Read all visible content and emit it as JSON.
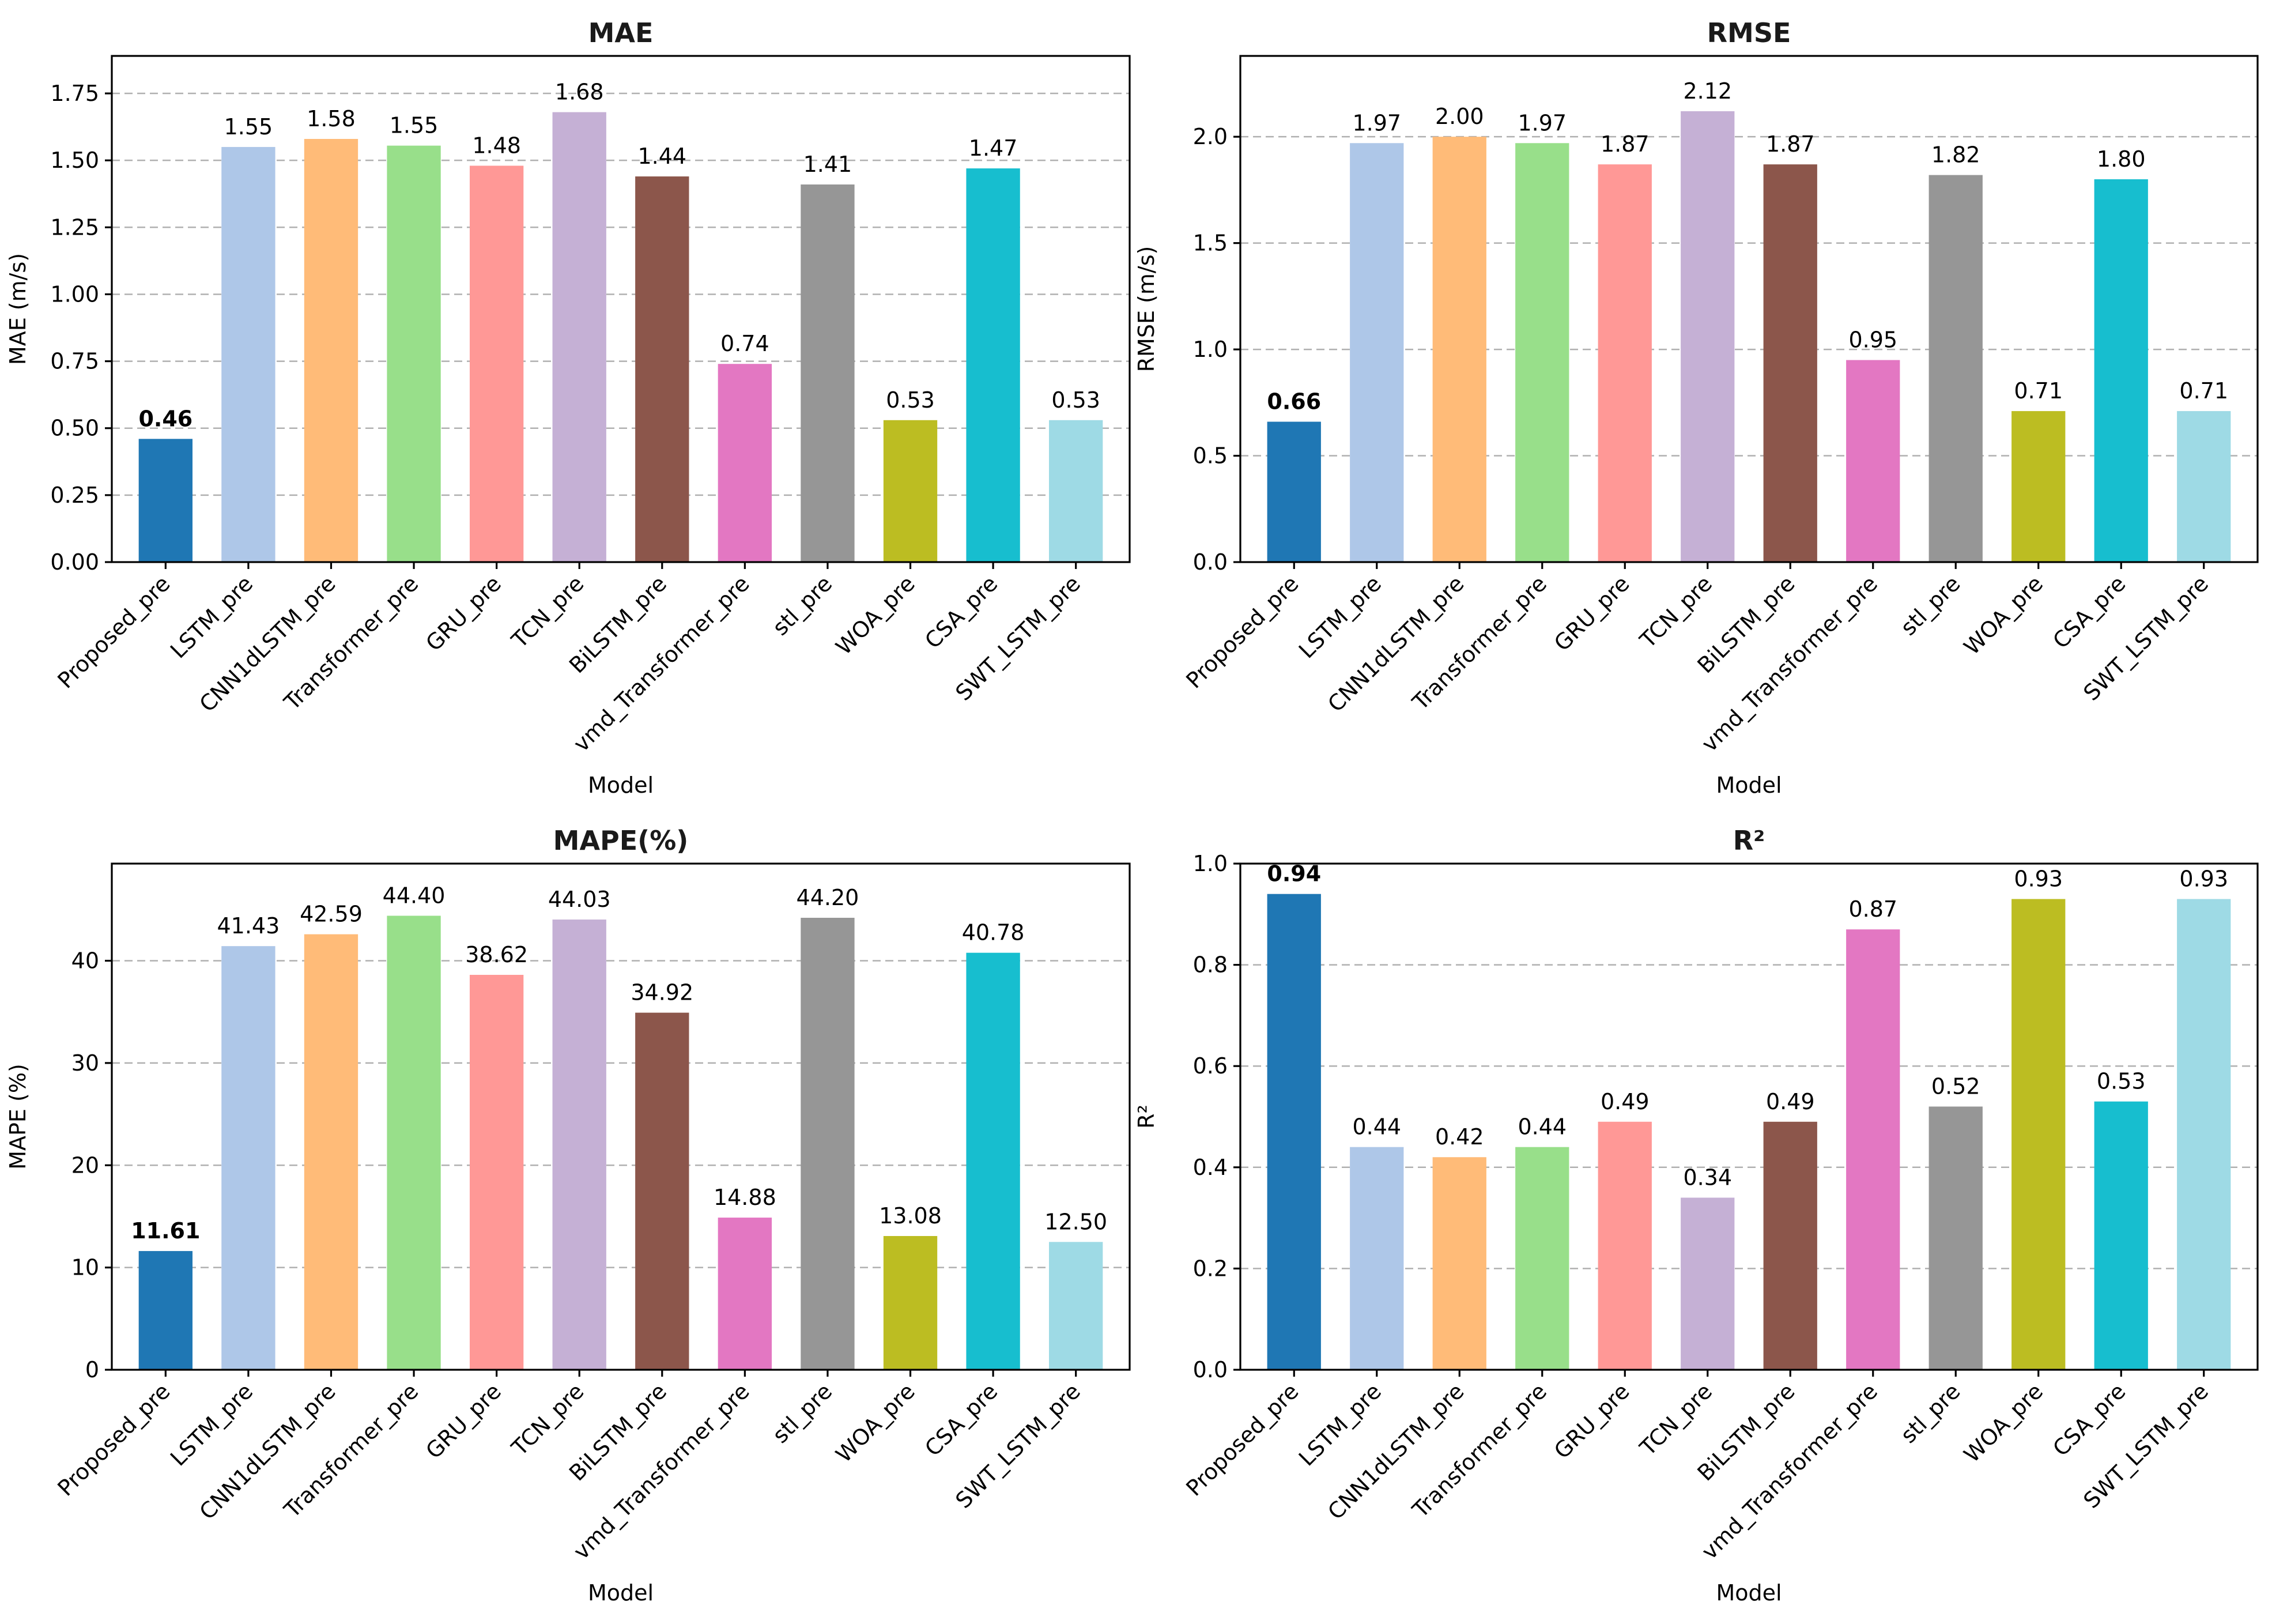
{
  "chart_data": [
    {
      "type": "bar",
      "title": "MAE",
      "xlabel": "Model",
      "ylabel": "MAE (m/s)",
      "ylim": [
        0,
        1.89
      ],
      "yticks": [
        0.0,
        0.25,
        0.5,
        0.75,
        1.0,
        1.25,
        1.5,
        1.75
      ],
      "ytick_labels": [
        "0.00",
        "0.25",
        "0.50",
        "0.75",
        "1.00",
        "1.25",
        "1.50",
        "1.75"
      ],
      "categories": [
        "Proposed_pre",
        "LSTM_pre",
        "CNN1dLSTM_pre",
        "Transformer_pre",
        "GRU_pre",
        "TCN_pre",
        "BiLSTM_pre",
        "vmd_Transformer_pre",
        "stl_pre",
        "WOA_pre",
        "CSA_pre",
        "SWT_LSTM_pre"
      ],
      "values": [
        0.46,
        1.55,
        1.58,
        1.555,
        1.48,
        1.68,
        1.44,
        0.74,
        1.41,
        0.53,
        1.47,
        0.53
      ],
      "value_labels": [
        "0.46",
        "1.55",
        "1.58",
        "1.55",
        "1.48",
        "1.68",
        "1.44",
        "0.74",
        "1.41",
        "0.53",
        "1.47",
        "0.53"
      ],
      "grid": true
    },
    {
      "type": "bar",
      "title": "RMSE",
      "xlabel": "Model",
      "ylabel": "RMSE (m/s)",
      "ylim": [
        0,
        2.38
      ],
      "yticks": [
        0.0,
        0.5,
        1.0,
        1.5,
        2.0
      ],
      "ytick_labels": [
        "0.0",
        "0.5",
        "1.0",
        "1.5",
        "2.0"
      ],
      "categories": [
        "Proposed_pre",
        "LSTM_pre",
        "CNN1dLSTM_pre",
        "Transformer_pre",
        "GRU_pre",
        "TCN_pre",
        "BiLSTM_pre",
        "vmd_Transformer_pre",
        "stl_pre",
        "WOA_pre",
        "CSA_pre",
        "SWT_LSTM_pre"
      ],
      "values": [
        0.66,
        1.97,
        2.0,
        1.97,
        1.87,
        2.12,
        1.87,
        0.95,
        1.82,
        0.71,
        1.8,
        0.71
      ],
      "value_labels": [
        "0.66",
        "1.97",
        "2.00",
        "1.97",
        "1.87",
        "2.12",
        "1.87",
        "0.95",
        "1.82",
        "0.71",
        "1.80",
        "0.71"
      ],
      "grid": true
    },
    {
      "type": "bar",
      "title": "MAPE(%)",
      "xlabel": "Model",
      "ylabel": "MAPE (%)",
      "ylim": [
        0,
        49.5
      ],
      "yticks": [
        0,
        10,
        20,
        30,
        40
      ],
      "ytick_labels": [
        "0",
        "10",
        "20",
        "30",
        "40"
      ],
      "categories": [
        "Proposed_pre",
        "LSTM_pre",
        "CNN1dLSTM_pre",
        "Transformer_pre",
        "GRU_pre",
        "TCN_pre",
        "BiLSTM_pre",
        "vmd_Transformer_pre",
        "stl_pre",
        "WOA_pre",
        "CSA_pre",
        "SWT_LSTM_pre"
      ],
      "values": [
        11.61,
        41.43,
        42.59,
        44.4,
        38.62,
        44.03,
        34.92,
        14.88,
        44.2,
        13.08,
        40.78,
        12.5
      ],
      "value_labels": [
        "11.61",
        "41.43",
        "42.59",
        "44.40",
        "38.62",
        "44.03",
        "34.92",
        "14.88",
        "44.20",
        "13.08",
        "40.78",
        "12.50"
      ],
      "grid": true
    },
    {
      "type": "bar",
      "title": "R²",
      "xlabel": "Model",
      "ylabel": "R²",
      "ylim": [
        0,
        1.0
      ],
      "yticks": [
        0.0,
        0.2,
        0.4,
        0.6,
        0.8,
        1.0
      ],
      "ytick_labels": [
        "0.0",
        "0.2",
        "0.4",
        "0.6",
        "0.8",
        "1.0"
      ],
      "categories": [
        "Proposed_pre",
        "LSTM_pre",
        "CNN1dLSTM_pre",
        "Transformer_pre",
        "GRU_pre",
        "TCN_pre",
        "BiLSTM_pre",
        "vmd_Transformer_pre",
        "stl_pre",
        "WOA_pre",
        "CSA_pre",
        "SWT_LSTM_pre"
      ],
      "values": [
        0.94,
        0.44,
        0.42,
        0.44,
        0.49,
        0.34,
        0.49,
        0.87,
        0.52,
        0.93,
        0.53,
        0.93
      ],
      "value_labels": [
        "0.94",
        "0.44",
        "0.42",
        "0.44",
        "0.49",
        "0.34",
        "0.49",
        "0.87",
        "0.52",
        "0.93",
        "0.53",
        "0.93"
      ],
      "grid": true
    }
  ],
  "colors": {
    "bars": [
      "#1f77b4",
      "#aec7e8",
      "#ffbb78",
      "#98df8a",
      "#ff9896",
      "#c5b0d5",
      "#8c564b",
      "#e377c2",
      "#969696",
      "#bcbd22",
      "#17becf",
      "#9edae5"
    ],
    "grid": "#b0b0b0",
    "frame": "#000000"
  },
  "highlight_index": 0
}
